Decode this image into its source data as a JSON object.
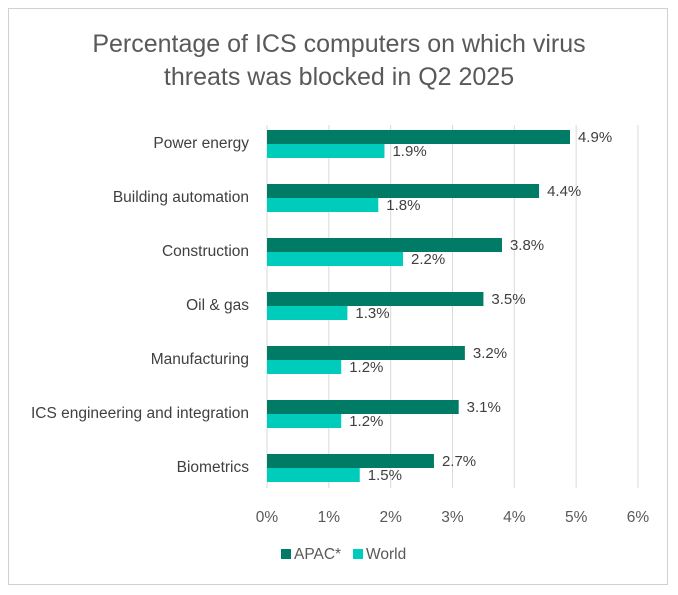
{
  "chart_data": {
    "type": "bar",
    "orientation": "horizontal",
    "title_lines": [
      "Percentage of ICS computers on which virus",
      "threats was blocked in Q2 2025"
    ],
    "categories": [
      "Power energy",
      "Building automation",
      "Construction",
      "Oil & gas",
      "Manufacturing",
      "ICS engineering and integration",
      "Biometrics"
    ],
    "series": [
      {
        "name": "APAC*",
        "color": "#007B65",
        "values": [
          4.9,
          4.4,
          3.8,
          3.5,
          3.2,
          3.1,
          2.7
        ],
        "labels": [
          "4.9%",
          "4.4%",
          "3.8%",
          "3.5%",
          "3.2%",
          "3.1%",
          "2.7%"
        ]
      },
      {
        "name": "World",
        "color": "#00CCBB",
        "values": [
          1.9,
          1.8,
          2.2,
          1.3,
          1.2,
          1.2,
          1.5
        ],
        "labels": [
          "1.9%",
          "1.8%",
          "2.2%",
          "1.3%",
          "1.2%",
          "1.2%",
          "1.5%"
        ]
      }
    ],
    "xlim": [
      0,
      6
    ],
    "xticks": [
      "0%",
      "1%",
      "2%",
      "3%",
      "4%",
      "5%",
      "6%"
    ],
    "xlabel": "",
    "ylabel": "",
    "grid": "vertical",
    "legend_position": "bottom"
  }
}
